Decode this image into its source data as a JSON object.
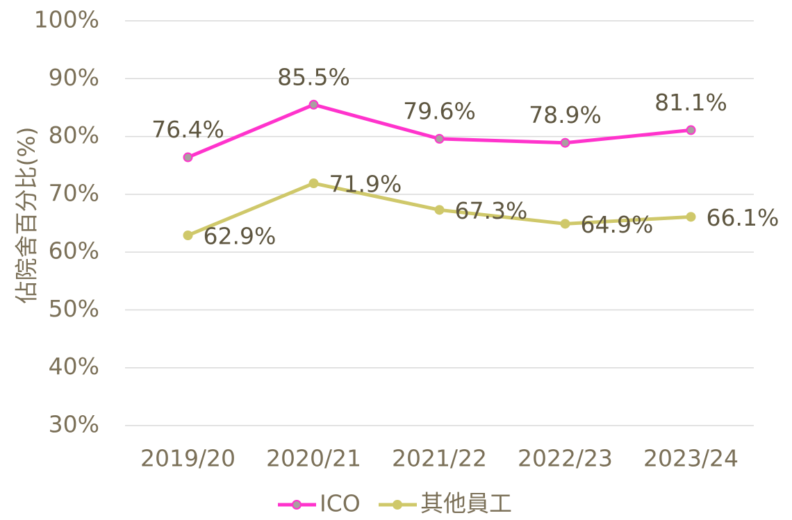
{
  "chart_data": {
    "type": "line",
    "y_label": "佔院舍百分比(%)",
    "categories": [
      "2019/20",
      "2020/21",
      "2021/22",
      "2022/23",
      "2023/24"
    ],
    "series": [
      {
        "name": "ICO",
        "color": "#ff33cc",
        "values": [
          76.4,
          85.5,
          79.6,
          78.9,
          81.1
        ],
        "value_labels": [
          "76.4%",
          "85.5%",
          "79.6%",
          "78.9%",
          "81.1%"
        ]
      },
      {
        "name": "其他員工",
        "color": "#cfc86a",
        "values": [
          62.9,
          71.9,
          67.3,
          64.9,
          66.1
        ],
        "value_labels": [
          "62.9%",
          "71.9%",
          "67.3%",
          "64.9%",
          "66.1%"
        ]
      }
    ],
    "ylim": [
      30,
      100
    ],
    "yticks": [
      {
        "value": 30,
        "label": "30%"
      },
      {
        "value": 40,
        "label": "40%"
      },
      {
        "value": 50,
        "label": "50%"
      },
      {
        "value": 60,
        "label": "60%"
      },
      {
        "value": 70,
        "label": "70%"
      },
      {
        "value": 80,
        "label": "80%"
      },
      {
        "value": 90,
        "label": "90%"
      },
      {
        "value": 100,
        "label": "100%"
      }
    ],
    "grid": true,
    "legend": "bottom"
  }
}
